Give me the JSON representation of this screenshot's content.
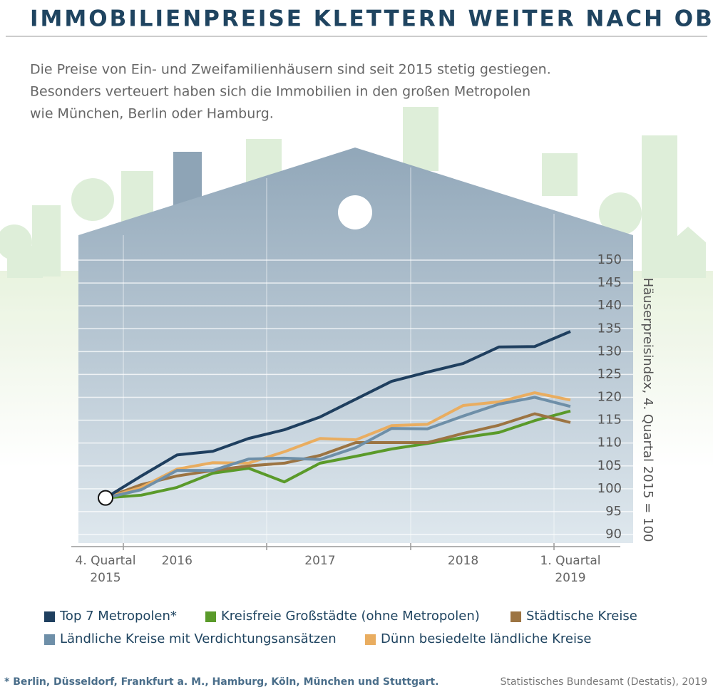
{
  "chart_data": {
    "type": "line",
    "title": "IMMOBILIENPREISE KLETTERN WEITER NACH OBEN",
    "subtitle": [
      "Die Preise von Ein- und Zweifamilienhäusern sind seit 2015 stetig gestiegen.",
      "Besonders verteuert haben sich die Immobilien in den großen Metropolen",
      "wie München, Berlin oder Hamburg."
    ],
    "y_label": "Häuserpreisindex, 4. Quartal 2015 = 100",
    "categories": [
      "4. Quartal 2015",
      null,
      "2016",
      null,
      null,
      null,
      "2017",
      null,
      null,
      null,
      "2018",
      null,
      null,
      "1. Quartal 2019"
    ],
    "ylim": [
      90,
      150
    ],
    "yticks": [
      90,
      95,
      100,
      105,
      110,
      115,
      120,
      125,
      130,
      135,
      140,
      145,
      150
    ],
    "grid": true,
    "series": [
      {
        "name": "Top 7 Metropolen*",
        "color": "#1f3f5f",
        "values": [
          98,
          102.8,
          107.4,
          108.2,
          111,
          112.9,
          115.7,
          119.6,
          123.5,
          125.5,
          127.4,
          131,
          131.1,
          134.4
        ]
      },
      {
        "name": "Kreisfreie Großstädte (ohne Metropolen)",
        "color": "#5a9a2a",
        "values": [
          98,
          98.6,
          100.3,
          103.4,
          104.5,
          101.5,
          105.6,
          107.1,
          108.7,
          109.9,
          111.2,
          112.3,
          114.9,
          117
        ]
      },
      {
        "name": "Städtische Kreise",
        "color": "#9c7442",
        "values": [
          98,
          100.9,
          102.8,
          104,
          105,
          105.6,
          107.3,
          110.1,
          110.1,
          110.1,
          112.1,
          113.9,
          116.4,
          114.5
        ]
      },
      {
        "name": "Ländliche Kreise mit Verdichtungsansätzen",
        "color": "#6e8fa8",
        "values": [
          98,
          99.8,
          104,
          104,
          106.5,
          106.7,
          106.4,
          109,
          113.2,
          113.1,
          115.9,
          118.5,
          120,
          118
        ]
      },
      {
        "name": "Dünn besiedelte ländliche Kreise",
        "color": "#e9ad60",
        "values": [
          98,
          100.3,
          104.3,
          105.7,
          105.6,
          108.1,
          111,
          110.7,
          113.8,
          114.1,
          118.2,
          119,
          121,
          119.4
        ]
      }
    ],
    "footnote": "* Berlin, Düsseldorf, Frankfurt a. M., Hamburg, Köln, München und Stuttgart.",
    "source": "Statistisches Bundesamt (Destatis), 2019"
  }
}
